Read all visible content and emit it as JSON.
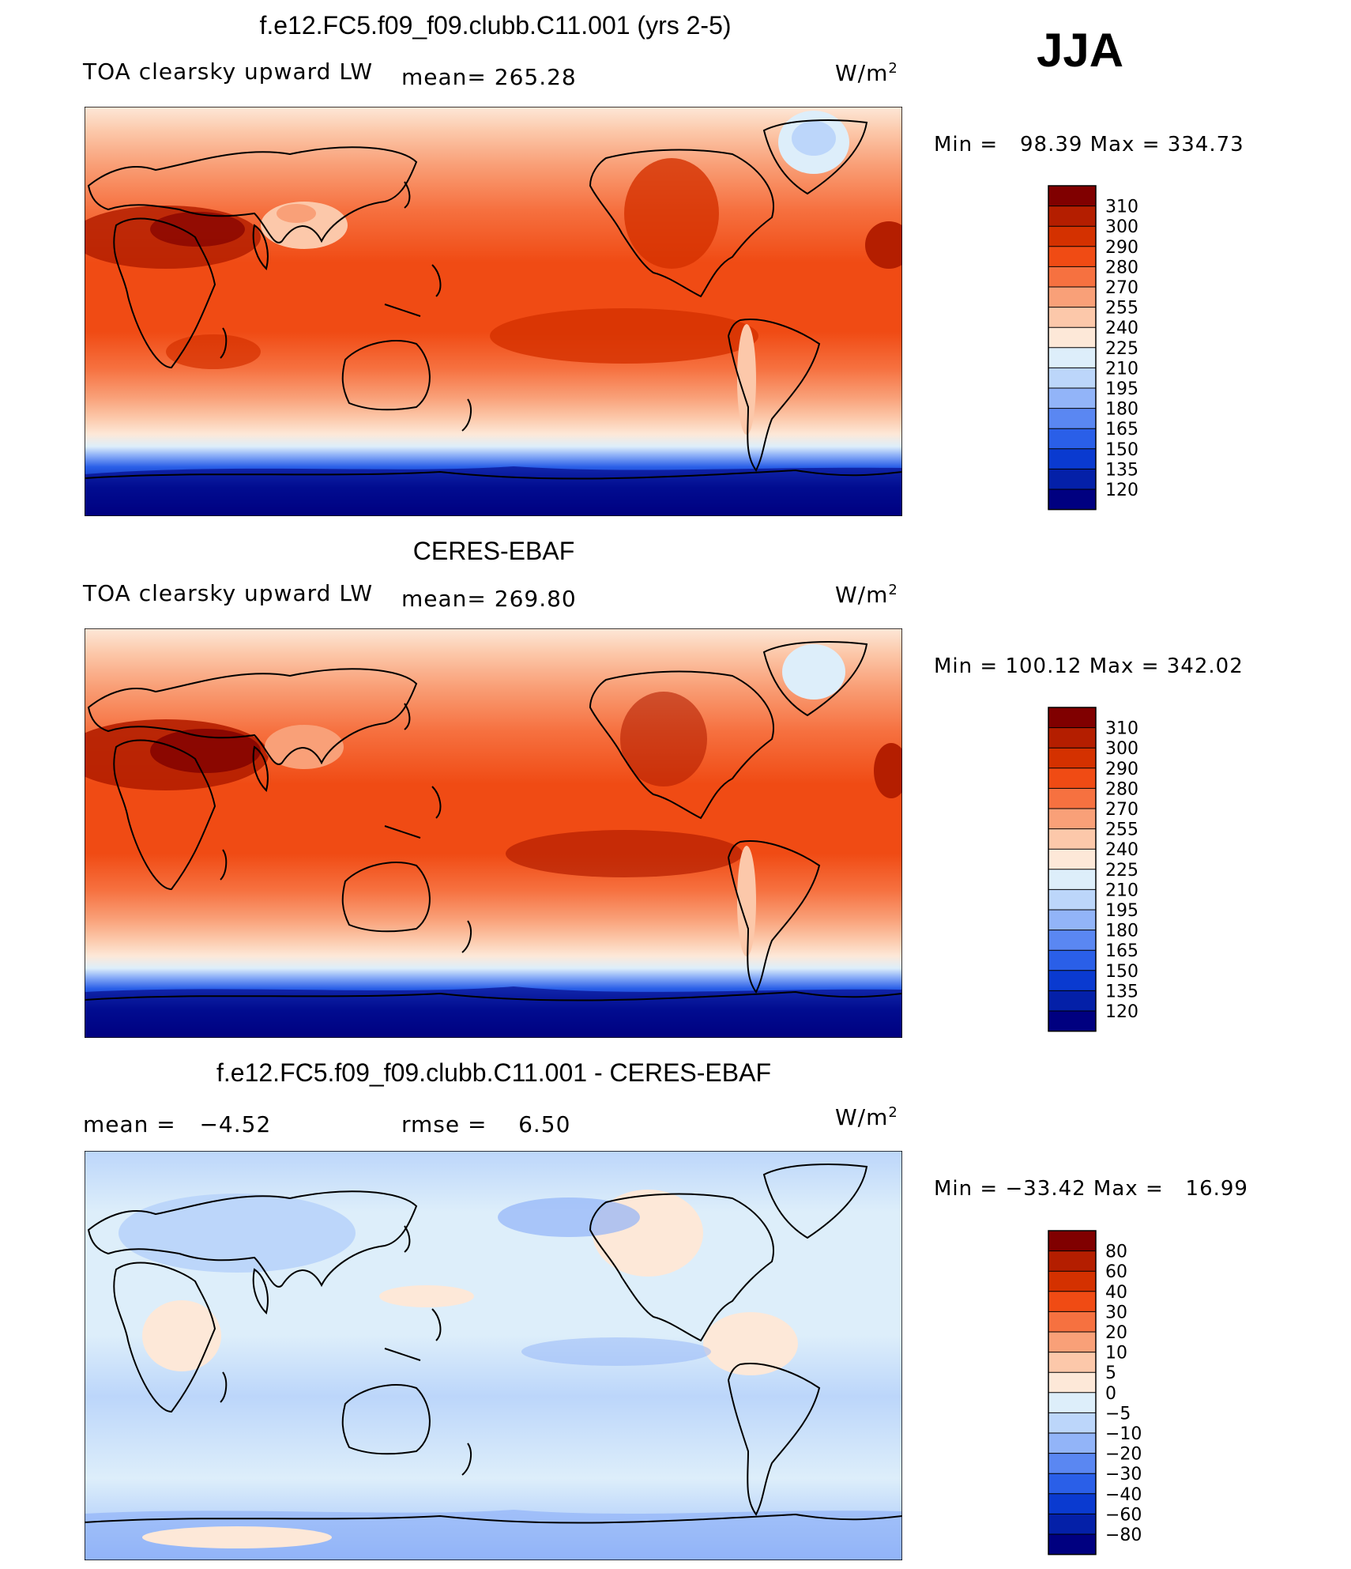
{
  "figure": {
    "season": "JJA"
  },
  "panels": [
    {
      "title": "f.e12.FC5.f09_f09.clubb.C11.001 (yrs 2-5)",
      "left_label": "TOA clearsky upward LW",
      "stat_text": "mean= 265.28",
      "units": "W/m",
      "units_exp": "2",
      "minmax": "Min =   98.39 Max = 334.73"
    },
    {
      "title": "CERES-EBAF",
      "left_label": "TOA clearsky upward LW",
      "stat_text": "mean= 269.80",
      "units": "W/m",
      "units_exp": "2",
      "minmax": "Min = 100.12 Max = 342.02"
    },
    {
      "title": "f.e12.FC5.f09_f09.clubb.C11.001 - CERES-EBAF",
      "left_label": "mean =   −4.52",
      "stat_text": "rmse =    6.50",
      "units": "W/m",
      "units_exp": "2",
      "minmax": "Min = −33.42 Max =   16.99"
    }
  ],
  "chart_data": [
    {
      "type": "heatmap",
      "title": "f.e12.FC5.f09_f09.clubb.C11.001 (yrs 2-5)",
      "variable": "TOA clearsky upward LW",
      "units": "W/m2",
      "mean": 265.28,
      "min": 98.39,
      "max": 334.73,
      "colorbar": {
        "ticks": [
          "310",
          "300",
          "290",
          "280",
          "270",
          "255",
          "240",
          "225",
          "210",
          "195",
          "180",
          "165",
          "150",
          "135",
          "120"
        ],
        "colors": [
          "#800000",
          "#b41e00",
          "#d43100",
          "#f04b14",
          "#f67140",
          "#f9a078",
          "#fcc8aa",
          "#fde8d8",
          "#ddeefa",
          "#bcd6fa",
          "#92b4f8",
          "#5a87f2",
          "#2a5fe8",
          "#0a3ad0",
          "#0420a8",
          "#000080"
        ]
      }
    },
    {
      "type": "heatmap",
      "title": "CERES-EBAF",
      "variable": "TOA clearsky upward LW",
      "units": "W/m2",
      "mean": 269.8,
      "min": 100.12,
      "max": 342.02,
      "colorbar": {
        "ticks": [
          "310",
          "300",
          "290",
          "280",
          "270",
          "255",
          "240",
          "225",
          "210",
          "195",
          "180",
          "165",
          "150",
          "135",
          "120"
        ],
        "colors": [
          "#800000",
          "#b41e00",
          "#d43100",
          "#f04b14",
          "#f67140",
          "#f9a078",
          "#fcc8aa",
          "#fde8d8",
          "#ddeefa",
          "#bcd6fa",
          "#92b4f8",
          "#5a87f2",
          "#2a5fe8",
          "#0a3ad0",
          "#0420a8",
          "#000080"
        ]
      }
    },
    {
      "type": "heatmap",
      "title": "f.e12.FC5.f09_f09.clubb.C11.001 - CERES-EBAF",
      "units": "W/m2",
      "mean": -4.52,
      "rmse": 6.5,
      "min": -33.42,
      "max": 16.99,
      "colorbar": {
        "ticks": [
          "80",
          "60",
          "40",
          "30",
          "20",
          "10",
          "5",
          "0",
          "−5",
          "−10",
          "−20",
          "−30",
          "−40",
          "−60",
          "−80"
        ],
        "colors": [
          "#800000",
          "#b41e00",
          "#d43100",
          "#f04b14",
          "#f67140",
          "#f9a078",
          "#fcc8aa",
          "#fde8d8",
          "#ddeefa",
          "#bcd6fa",
          "#92b4f8",
          "#5a87f2",
          "#2a5fe8",
          "#0a3ad0",
          "#0420a8",
          "#000080"
        ]
      }
    }
  ]
}
